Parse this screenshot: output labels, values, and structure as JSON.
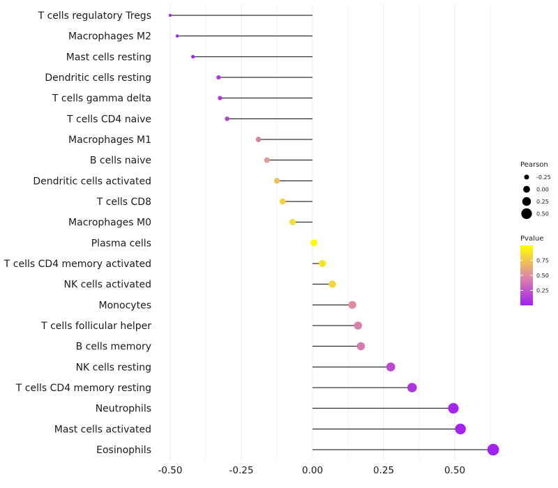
{
  "chart_data": {
    "type": "lollipop",
    "categories": [
      "T cells regulatory  Tregs",
      "Macrophages M2",
      "Mast cells resting",
      "Dendritic cells resting",
      "T cells gamma delta",
      "T cells CD4 naive",
      "Macrophages M1",
      "B cells naive",
      "Dendritic cells activated",
      "T cells CD8",
      "Macrophages M0",
      "Plasma cells",
      "T cells CD4 memory activated",
      "NK cells activated",
      "Monocytes",
      "T cells follicular helper",
      "B cells memory",
      "NK cells resting",
      "T cells CD4 memory resting",
      "Neutrophils",
      "Mast cells activated",
      "Eosinophils"
    ],
    "values": [
      -0.5,
      -0.475,
      -0.42,
      -0.33,
      -0.325,
      -0.3,
      -0.19,
      -0.16,
      -0.125,
      -0.105,
      -0.07,
      0.005,
      0.035,
      0.07,
      0.14,
      0.16,
      0.17,
      0.275,
      0.35,
      0.495,
      0.52,
      0.635
    ],
    "pvalues": [
      0.01,
      0.01,
      0.01,
      0.1,
      0.12,
      0.15,
      0.45,
      0.55,
      0.72,
      0.8,
      0.85,
      0.98,
      0.88,
      0.82,
      0.5,
      0.45,
      0.42,
      0.2,
      0.1,
      0.03,
      0.02,
      0.01
    ],
    "xlim": [
      -0.55,
      0.65
    ],
    "x_ticks": [
      -0.5,
      -0.25,
      0.0,
      0.25,
      0.5
    ],
    "x_tick_labels": [
      "-0.50",
      "-0.25",
      "0.00",
      "0.25",
      "0.50"
    ],
    "xlabel": "",
    "ylabel": "",
    "legend": {
      "size": {
        "title": "Pearson",
        "values": [
          -0.25,
          0.0,
          0.25,
          0.5
        ],
        "labels": [
          "-0.25",
          "0.00",
          "0.25",
          "0.50"
        ]
      },
      "color": {
        "title": "Pvalue",
        "tick_values": [
          0.75,
          0.5,
          0.25
        ],
        "labels": [
          "0.75",
          "0.50",
          "0.25"
        ],
        "low_color": "#a020f0",
        "mid_color": "#e08ca0",
        "high_color": "#ffff00"
      }
    }
  }
}
